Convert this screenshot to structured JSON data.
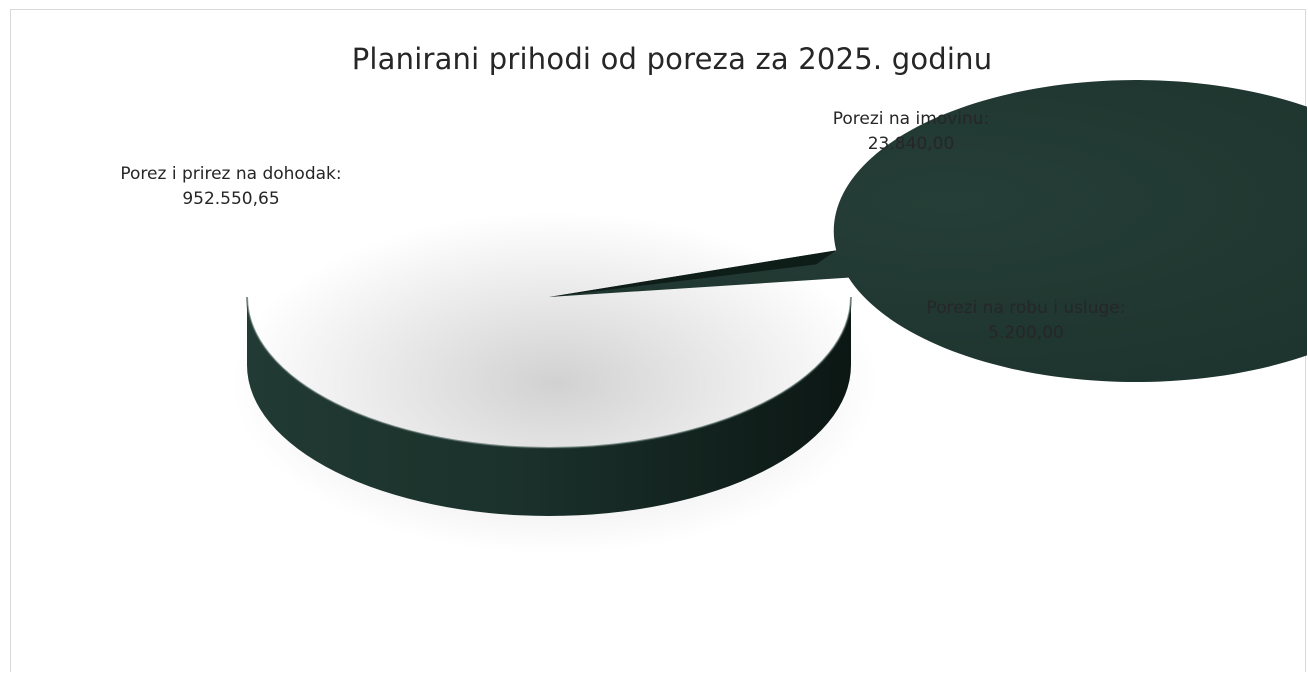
{
  "chart_data": {
    "type": "pie",
    "style": "3d-exploded",
    "title": "Planirani prihodi od poreza za 2025. godinu",
    "slices": [
      {
        "category": "Porez i prirez na dohodak:",
        "value_label": "952.550,65",
        "value": 952550.65,
        "color": "#223a34"
      },
      {
        "category": "Porezi na imovinu:",
        "value_label": "23.840,00",
        "value": 23840.0,
        "color": "#2a8a3c"
      },
      {
        "category": "Porezi na robu i usluge:",
        "value_label": "5.200,00",
        "value": 5200.0,
        "color": "#4f7a2c"
      }
    ]
  }
}
